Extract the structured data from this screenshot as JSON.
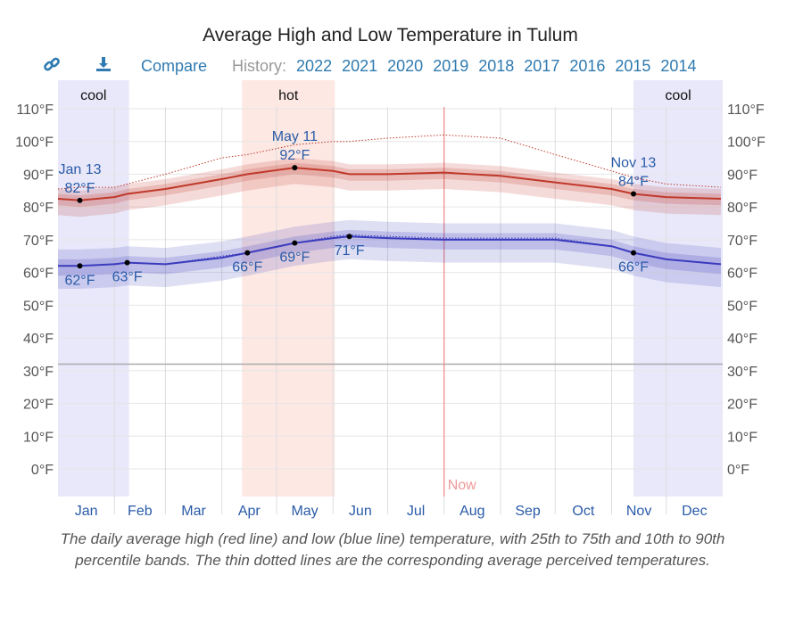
{
  "title": "Average High and Low Temperature in Tulum",
  "toolbar": {
    "link_icon": "link-icon",
    "download_icon": "download-icon",
    "compare": "Compare",
    "history_label": "History:",
    "years": [
      "2022",
      "2021",
      "2020",
      "2019",
      "2018",
      "2017",
      "2016",
      "2015",
      "2014"
    ]
  },
  "caption": "The daily average high (red line) and low (blue line) temperature, with 25th to 75th and 10th to 90th percentile bands. The thin dotted lines are the corresponding average perceived temperatures.",
  "chart_data": {
    "type": "line",
    "title": "Average High and Low Temperature in Tulum",
    "x_unit": "day of year",
    "categories": [
      "Jan",
      "Feb",
      "Mar",
      "Apr",
      "May",
      "Jun",
      "Jul",
      "Aug",
      "Sep",
      "Oct",
      "Nov",
      "Dec"
    ],
    "y_ticks": [
      "0°F",
      "10°F",
      "20°F",
      "30°F",
      "40°F",
      "50°F",
      "60°F",
      "70°F",
      "80°F",
      "90°F",
      "100°F",
      "110°F"
    ],
    "ylim": [
      -8,
      113
    ],
    "grid": true,
    "freezing_line": 32,
    "now": {
      "label": "Now",
      "date": "Aug 1"
    },
    "seasons": [
      {
        "label": "cool",
        "from": "Jan 1",
        "to": "Feb 8",
        "color": "#e8e8fa"
      },
      {
        "label": "hot",
        "from": "Apr 12",
        "to": "Jun 1",
        "color": "#fde8e4"
      },
      {
        "label": "cool",
        "from": "Nov 13",
        "to": "Dec 31",
        "color": "#e8e8fa"
      }
    ],
    "x": [
      "Jan 1",
      "Jan 13",
      "Feb 1",
      "Feb 8",
      "Mar 1",
      "Apr 1",
      "Apr 15",
      "May 11",
      "Jun 1",
      "Jun 10",
      "Jul 1",
      "Aug 1",
      "Sep 1",
      "Oct 1",
      "Nov 1",
      "Nov 13",
      "Dec 1",
      "Dec 31"
    ],
    "series": [
      {
        "name": "high",
        "color": "#c0392b",
        "values": [
          82.5,
          82,
          83,
          84,
          85.5,
          88.5,
          90,
          92,
          91,
          90,
          90,
          90.5,
          89.5,
          87.5,
          85.5,
          84,
          83,
          82.5
        ]
      },
      {
        "name": "low",
        "color": "#3b3bbd",
        "values": [
          62,
          62,
          62.5,
          63,
          62.5,
          64.5,
          66,
          69,
          70.5,
          71,
          70.5,
          70,
          70,
          70,
          68,
          66,
          64,
          62.5
        ]
      },
      {
        "name": "perceived high",
        "color": "#c0392b",
        "values": [
          85.5,
          86,
          86,
          87,
          90,
          95,
          96,
          99,
          100,
          100,
          101,
          102,
          101,
          96,
          91,
          89,
          87,
          86
        ]
      },
      {
        "name": "perceived low",
        "color": "#3b3bbd",
        "values": [
          62,
          62,
          62.5,
          63,
          62.5,
          65,
          66,
          69,
          71,
          71.5,
          71,
          70.5,
          70.5,
          70.5,
          68,
          66,
          64,
          62.5
        ]
      }
    ],
    "annotations": [
      {
        "series": "high",
        "date": "Jan 13",
        "label_date": "Jan 13",
        "label": "82°F",
        "value": 82
      },
      {
        "series": "high",
        "date": "May 11",
        "label_date": "May 11",
        "label": "92°F",
        "value": 92
      },
      {
        "series": "high",
        "date": "Nov 13",
        "label_date": "Nov 13",
        "label": "84°F",
        "value": 84
      },
      {
        "series": "low",
        "date": "Jan 13",
        "label": "62°F",
        "value": 62
      },
      {
        "series": "low",
        "date": "Feb 8",
        "label": "63°F",
        "value": 63
      },
      {
        "series": "low",
        "date": "Apr 15",
        "label": "66°F",
        "value": 66
      },
      {
        "series": "low",
        "date": "May 11",
        "label": "69°F",
        "value": 69
      },
      {
        "series": "low",
        "date": "Jun 10",
        "label": "71°F",
        "value": 71
      },
      {
        "series": "low",
        "date": "Nov 13",
        "label": "66°F",
        "value": 66
      }
    ]
  }
}
